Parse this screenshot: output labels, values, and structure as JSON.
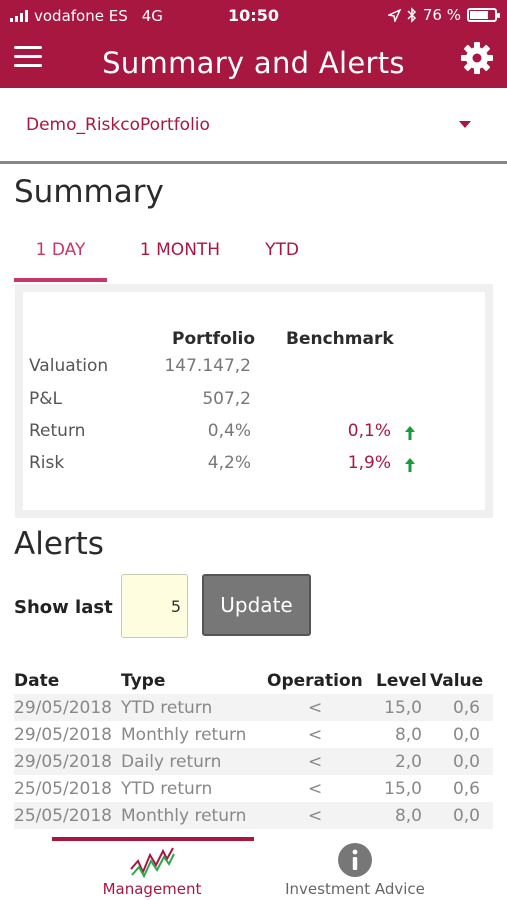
{
  "status_bar": {
    "carrier": "vodafone ES",
    "network": "4G",
    "time": "10:50",
    "battery": "76 %",
    "battery_level": 0.76
  },
  "header": {
    "title": "Summary and Alerts",
    "menu_icon": "hamburger-menu-icon",
    "settings_icon": "gear-icon"
  },
  "portfolio_selector": {
    "selected": "Demo_RiskcoPortfolio"
  },
  "summary": {
    "title": "Summary",
    "tabs": [
      {
        "label": "1 DAY",
        "active": true
      },
      {
        "label": "1 MONTH",
        "active": false
      },
      {
        "label": "YTD",
        "active": false
      }
    ],
    "columns": {
      "portfolio": "Portfolio",
      "benchmark": "Benchmark"
    },
    "rows": [
      {
        "label": "Valuation",
        "portfolio": "147.147,2",
        "benchmark": ""
      },
      {
        "label": "P&L",
        "portfolio": "507,2",
        "benchmark": ""
      },
      {
        "label": "Return",
        "portfolio": "0,4%",
        "benchmark": "0,1%",
        "trend": "up-arrow-icon"
      },
      {
        "label": "Risk",
        "portfolio": "4,2%",
        "benchmark": "1,9%",
        "trend": "up-arrow-icon"
      }
    ]
  },
  "alerts": {
    "title": "Alerts",
    "show_last_label": "Show last",
    "show_last_value": "5",
    "update_label": "Update",
    "columns": {
      "date": "Date",
      "type": "Type",
      "operation": "Operation",
      "level": "Level",
      "value": "Value"
    },
    "rows": [
      {
        "date": "29/05/2018",
        "type": "YTD return",
        "operation": "<",
        "level": "15,0",
        "value": "0,6"
      },
      {
        "date": "29/05/2018",
        "type": "Monthly return",
        "operation": "<",
        "level": "8,0",
        "value": "0,0"
      },
      {
        "date": "29/05/2018",
        "type": "Daily return",
        "operation": "<",
        "level": "2,0",
        "value": "0,0"
      },
      {
        "date": "25/05/2018",
        "type": "YTD return",
        "operation": "<",
        "level": "15,0",
        "value": "0,6"
      },
      {
        "date": "25/05/2018",
        "type": "Monthly return",
        "operation": "<",
        "level": "8,0",
        "value": "0,0"
      }
    ]
  },
  "bottom_nav": {
    "items": [
      {
        "label": "Management",
        "icon": "chart-trend-icon",
        "active": true
      },
      {
        "label": "Investment Advice",
        "icon": "info-icon",
        "active": false
      }
    ]
  },
  "colors": {
    "brand": "#a8173f",
    "accent_tab": "#c8366a",
    "positive": "#1a9a3c"
  }
}
